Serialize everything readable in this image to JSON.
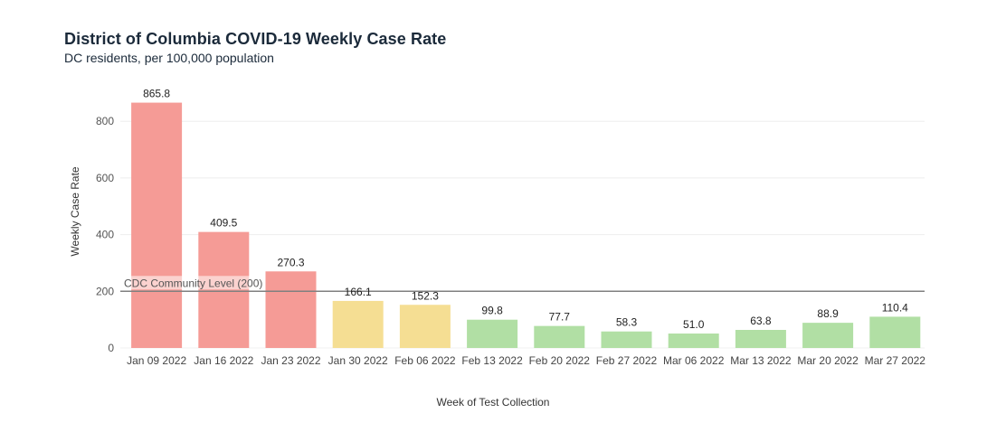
{
  "title": "District of Columbia COVID-19 Weekly Case Rate",
  "subtitle": "DC residents, per 100,000 population",
  "colors": {
    "high": "#f59b96",
    "medium": "#f5de93",
    "low": "#b1dfa4",
    "reference_line": "#808080",
    "grid": "#eeeeee"
  },
  "chart_data": {
    "type": "bar",
    "title": "District of Columbia COVID-19 Weekly Case Rate",
    "subtitle": "DC residents, per 100,000 population",
    "xlabel": "Week of Test Collection",
    "ylabel": "Weekly Case Rate",
    "ylim": [
      0,
      880
    ],
    "yticks": [
      0,
      200,
      400,
      600,
      800
    ],
    "grid": true,
    "categories": [
      "Jan 09 2022",
      "Jan 16 2022",
      "Jan 23 2022",
      "Jan 30 2022",
      "Feb 06 2022",
      "Feb 13 2022",
      "Feb 20 2022",
      "Feb 27 2022",
      "Mar 06 2022",
      "Mar 13 2022",
      "Mar 20 2022",
      "Mar 27 2022"
    ],
    "values": [
      865.8,
      409.5,
      270.3,
      166.1,
      152.3,
      99.8,
      77.7,
      58.3,
      51.0,
      63.8,
      88.9,
      110.4
    ],
    "value_labels": [
      "865.8",
      "409.5",
      "270.3",
      "166.1",
      "152.3",
      "99.8",
      "77.7",
      "58.3",
      "51.0",
      "63.8",
      "88.9",
      "110.4"
    ],
    "levels": [
      "high",
      "high",
      "high",
      "medium",
      "medium",
      "low",
      "low",
      "low",
      "low",
      "low",
      "low",
      "low"
    ],
    "reference_line": {
      "value": 200,
      "label": "CDC Community Level (200)"
    }
  }
}
